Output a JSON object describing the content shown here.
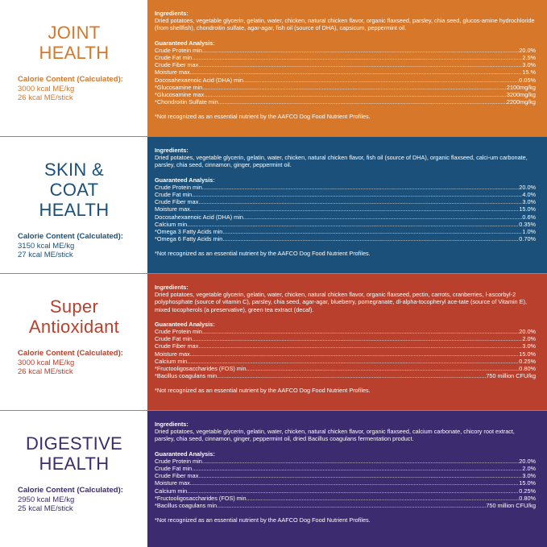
{
  "colors": {
    "orange": "#d6772a",
    "blue": "#1a5079",
    "red": "#b9402c",
    "purple": "#3c2b6e"
  },
  "labels": {
    "ingredients": "Ingredients:",
    "analysis": "Guaranteed Analysis:",
    "calorie": "Calorie Content (Calculated):",
    "note": "*Not recognized as an essential nutrient by the AAFCO Dog Food Nutrient Profiles."
  },
  "sections": [
    {
      "title1": "JOINT",
      "title2": "HEALTH",
      "kcal_kg": "3000 kcal ME/kg",
      "kcal_stick": "26 kcal ME/stick",
      "ingredients": "Dried potatoes, vegetable glycerin, gelatin, water, chicken, natural chicken flavor, organic flaxseed, parsley, chia seed, glucos-amine hydrochloride (from shellfish), chondroitin sulfate, agar-agar, fish oil (source of DHA), capsicum, peppermint oil.",
      "analysis": [
        [
          "Crude Protein min",
          "20.0%"
        ],
        [
          "Crude Fat min",
          "2.5%"
        ],
        [
          "Crude Fiber max",
          "3.0%"
        ],
        [
          "Moisture max",
          "15.%"
        ],
        [
          "Docosahexaenoic Acid (DHA) min",
          "0.05%"
        ],
        [
          "*Glucosamine min",
          "2100mg/kg"
        ],
        [
          "*Glucosamine max",
          "3200mg/kg"
        ],
        [
          "*Chondroitin Sulfate min",
          "2200mg/kg"
        ]
      ]
    },
    {
      "title1": "SKIN & COAT",
      "title2": "HEALTH",
      "kcal_kg": "3150 kcal ME/kg",
      "kcal_stick": "27 kcal ME/stick",
      "ingredients": "Dried potatoes, vegetable glycerin, gelatin, water, chicken, natural chicken flavor, fish oil (source of DHA), organic flaxseed, calci-um carbonate, parsley, chia seed, cinnamon, ginger, peppermint oil.",
      "analysis": [
        [
          "Crude Protein min",
          "20.0%"
        ],
        [
          "Crude Fat min",
          "4.0%"
        ],
        [
          "Crude Fiber max",
          "3.0%"
        ],
        [
          "Moisture max",
          "15.0%"
        ],
        [
          "Docosahexaenoic Acid (DHA) min",
          "0.6%"
        ],
        [
          "Calcium min",
          "0.35%"
        ],
        [
          "*Omega 3 Fatty Acids min",
          "1.0%"
        ],
        [
          "*Omega 6 Fatty Acids min",
          "0.70%"
        ]
      ]
    },
    {
      "title1": "Super",
      "title2": "Antioxidant",
      "kcal_kg": "3000 kcal ME/kg",
      "kcal_stick": "26 kcal ME/stick",
      "ingredients": "Dried potatoes, vegetable glycerin, gelatin, water, chicken, natural chicken flavor, organic flaxseed, pectin, carrots, cranberries, l-ascorbyl-2 polyphosphate (source of vitamin C), parsley, chia seed, agar-agar, blueberry, pomegranate, dl-alpha-tocopheryl ace-tate (source of Vitamin E), mixed tocopherols (a preservative), green tea extract (decaf).",
      "analysis": [
        [
          "Crude Protein min",
          "20.0%"
        ],
        [
          "Crude Fat min",
          "2.0%"
        ],
        [
          "Crude Fiber max",
          "3.0%"
        ],
        [
          "Moisture max",
          "15.0%"
        ],
        [
          "Calcium min",
          "0.25%"
        ],
        [
          "*Fructooligosaccharides (FOS) min",
          "0.80%"
        ],
        [
          "*Bacillus coagulans min",
          "750 million CFU/kg"
        ]
      ]
    },
    {
      "title1": "DIGESTIVE",
      "title2": "HEALTH",
      "kcal_kg": "2950 kcal ME/kg",
      "kcal_stick": "25 kcal ME/stick",
      "ingredients": "Dried potatoes, vegetable glycerin, gelatin, water, chicken, natural chicken flavor, organic flaxseed, calcium carbonate, chicory root extract, parsley, chia seed, cinnamon, ginger, peppermint oil, dried Bacillus coagulans fermentation product.",
      "analysis": [
        [
          "Crude Protein min",
          "20.0%"
        ],
        [
          "Crude Fat min",
          "2.0%"
        ],
        [
          "Crude Fiber max",
          "3.0%"
        ],
        [
          "Moisture max",
          "15.0%"
        ],
        [
          "Calcium min",
          "0.25%"
        ],
        [
          "*Fructooligosaccharides (FOS) min",
          "0.80%"
        ],
        [
          "*Bacillus coagulans min",
          "750 million CFU/kg"
        ]
      ]
    }
  ]
}
